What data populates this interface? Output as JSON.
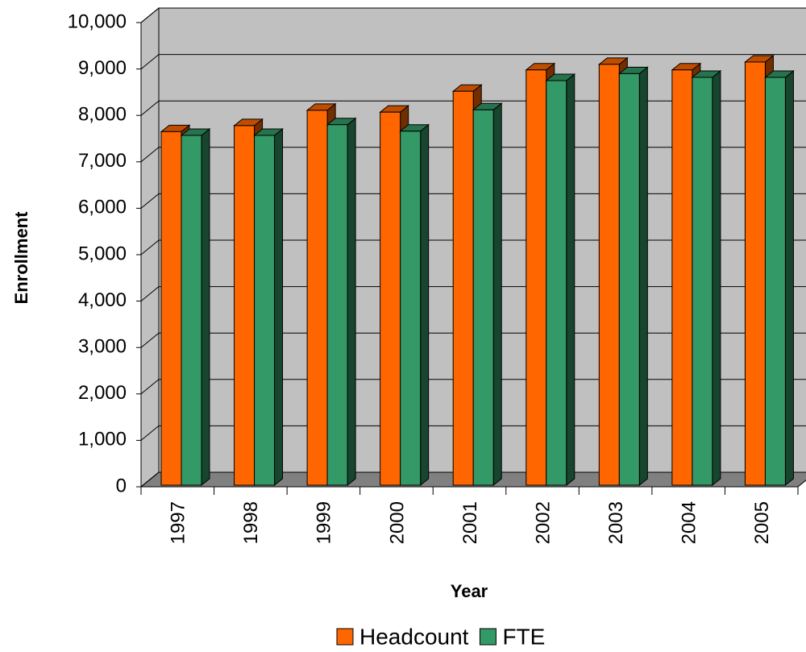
{
  "chart_data": {
    "type": "bar3d",
    "x_label": "Year",
    "y_label": "Enrollment",
    "categories": [
      "1997",
      "1998",
      "1999",
      "2000",
      "2001",
      "2002",
      "2003",
      "2004",
      "2005"
    ],
    "series": [
      {
        "name": "Headcount",
        "color": "#ff6600",
        "values": [
          7650,
          7780,
          8110,
          8070,
          8520,
          8980,
          9100,
          8980,
          9150
        ]
      },
      {
        "name": "FTE",
        "color": "#339966",
        "values": [
          7570,
          7570,
          7800,
          7660,
          8120,
          8750,
          8900,
          8820,
          8820
        ]
      }
    ],
    "ylim": [
      0,
      10000
    ],
    "yticks": [
      0,
      {
        "value": 1000,
        "label": "1,000"
      },
      {
        "value": 2000,
        "label": "2,000"
      },
      {
        "value": 3000,
        "label": "3,000"
      },
      {
        "value": 4000,
        "label": "4,000"
      },
      {
        "value": 5000,
        "label": "5,000"
      },
      {
        "value": 6000,
        "label": "6,000"
      },
      {
        "value": 7000,
        "label": "7,000"
      },
      {
        "value": 8000,
        "label": "8,000"
      },
      {
        "value": 9000,
        "label": "9,000"
      },
      {
        "value": 10000,
        "label": "10,000"
      }
    ],
    "grid": true
  }
}
